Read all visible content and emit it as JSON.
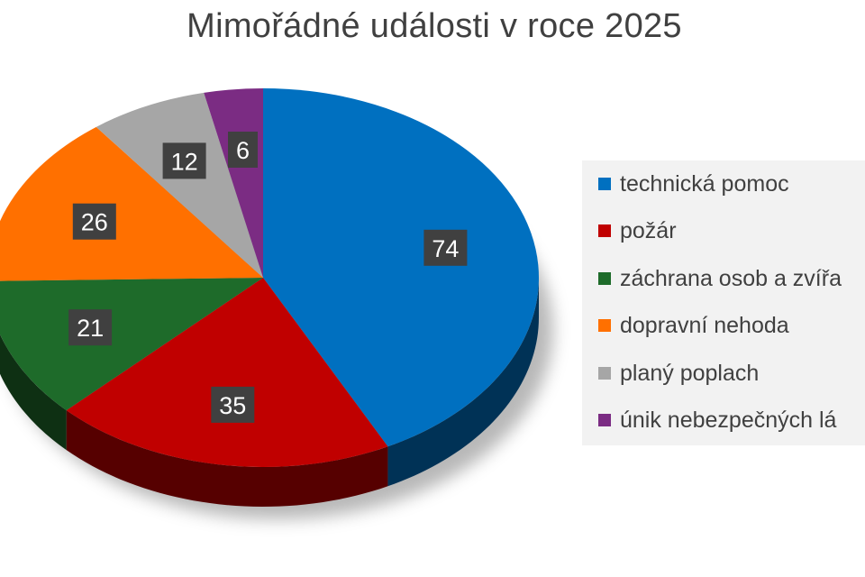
{
  "chart_data": {
    "type": "pie",
    "title": "Mimořádné události v roce 2025",
    "categories": [
      "technická pomoc",
      "požár",
      "záchrana osob a zvířat",
      "dopravní nehoda",
      "planý poplach",
      "únik nebezpečných látek"
    ],
    "legend_labels": [
      "technická pomoc",
      "požár",
      "záchrana osob a zvířa",
      "dopravní nehoda",
      "planý poplach",
      "únik nebezpečných lá"
    ],
    "values": [
      74,
      35,
      21,
      26,
      12,
      6
    ],
    "colors": [
      "#0070C0",
      "#C00000",
      "#1E6B2A",
      "#FF7000",
      "#A6A6A6",
      "#7B2C83"
    ],
    "show_data_labels": true,
    "legend_position": "right",
    "style": "3d-pie"
  }
}
